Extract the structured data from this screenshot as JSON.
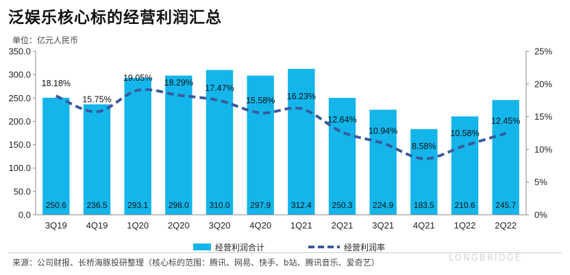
{
  "title": "泛娱乐核心标的经营利润汇总",
  "unit": "单位：亿元人民币",
  "source": "来源：公司财报、长桥海豚投研整理（核心标的范围：腾讯、网易、快手、b站、腾讯音乐、爱奇艺）",
  "watermark": "LONGBRIDGE",
  "colors": {
    "bar": "#13B5EA",
    "line": "#3A5A9E"
  },
  "chart_data": {
    "type": "bar",
    "categories": [
      "3Q19",
      "4Q19",
      "1Q20",
      "2Q20",
      "3Q20",
      "4Q20",
      "1Q21",
      "2Q21",
      "3Q21",
      "4Q21",
      "1Q22",
      "2Q22"
    ],
    "series": [
      {
        "name": "经营利润合计",
        "type": "bar",
        "axis": "left",
        "values": [
          250.6,
          236.5,
          293.1,
          298.0,
          310.0,
          297.9,
          312.4,
          250.3,
          224.9,
          183.5,
          210.6,
          245.7
        ],
        "labels": [
          "250.6",
          "236.5",
          "293.1",
          "298.0",
          "310.0",
          "297.9",
          "312.4",
          "250.3",
          "224.9",
          "183.5",
          "210.6",
          "245.7"
        ]
      },
      {
        "name": "经营利润率",
        "type": "line",
        "style": "dashed",
        "axis": "right",
        "values": [
          18.18,
          15.75,
          19.05,
          18.29,
          17.47,
          15.58,
          16.23,
          12.64,
          10.94,
          8.58,
          10.58,
          12.45
        ],
        "labels": [
          "18.18%",
          "15.75%",
          "19.05%",
          "18.29%",
          "17.47%",
          "15.58%",
          "16.23%",
          "12.64%",
          "10.94%",
          "8.58%",
          "10.58%",
          "12.45%"
        ]
      }
    ],
    "ylim_left": [
      0,
      350
    ],
    "ylim_right": [
      0,
      25
    ],
    "yticks_left": [
      "0.0",
      "50.0",
      "100.0",
      "150.0",
      "200.0",
      "250.0",
      "300.0",
      "350.0"
    ],
    "yticks_right": [
      "0%",
      "5%",
      "10%",
      "15%",
      "20%",
      "25%"
    ],
    "grid": false,
    "legend_position": "bottom"
  }
}
